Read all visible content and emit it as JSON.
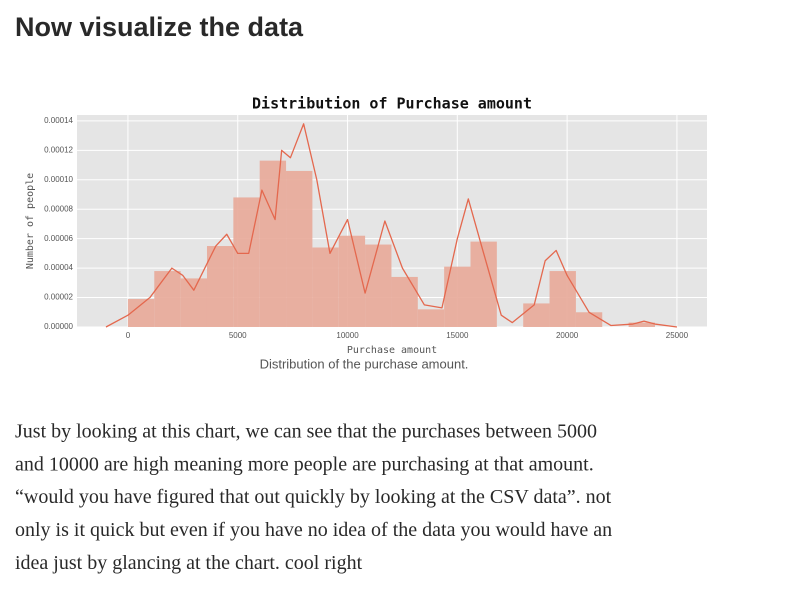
{
  "heading": "Now visualize the data",
  "chart_data": {
    "type": "histogram",
    "title": "Distribution of Purchase amount",
    "xlabel": "Purchase amount",
    "ylabel": "Number of people",
    "bins": [
      0,
      1200,
      2400,
      3600,
      4800,
      6000,
      7200,
      8400,
      9600,
      10800,
      12000,
      13200,
      14400,
      15600,
      16800,
      18000,
      19200,
      20400,
      21600,
      22800,
      24000
    ],
    "values": [
      1.9e-05,
      3.8e-05,
      3.3e-05,
      5.5e-05,
      8.8e-05,
      0.000113,
      0.000106,
      5.4e-05,
      6.2e-05,
      5.6e-05,
      3.4e-05,
      1.2e-05,
      4.1e-05,
      5.8e-05,
      0,
      1.6e-05,
      3.8e-05,
      1e-05,
      0,
      3e-06
    ],
    "color": "#e8a898",
    "kde": {
      "color": "#e4684e",
      "x": [
        -1000,
        0,
        1000,
        2000,
        2500,
        3000,
        4000,
        4500,
        5000,
        5500,
        6100,
        6700,
        7000,
        7400,
        8000,
        8600,
        9200,
        10000,
        10800,
        11700,
        12500,
        13500,
        14300,
        15000,
        15500,
        16200,
        17000,
        17500,
        18500,
        19000,
        19500,
        20000,
        21000,
        22000,
        23000,
        23500,
        24000,
        25000
      ],
      "y": [
        0,
        8e-06,
        2e-05,
        4e-05,
        3.5e-05,
        2.5e-05,
        5.5e-05,
        6.3e-05,
        5e-05,
        5e-05,
        9.3e-05,
        7.3e-05,
        0.00012,
        0.000115,
        0.000138,
        0.0001,
        5e-05,
        7.3e-05,
        2.3e-05,
        7.2e-05,
        4e-05,
        1.5e-05,
        1.3e-05,
        6e-05,
        8.7e-05,
        5e-05,
        8e-06,
        3e-06,
        1.5e-05,
        4.5e-05,
        5.2e-05,
        3.5e-05,
        1e-05,
        1e-06,
        2e-06,
        4e-06,
        2e-06,
        0
      ]
    },
    "xlim": [
      -2320,
      26370
    ],
    "ylim": [
      0,
      0.000144
    ],
    "xticks": [
      0,
      5000,
      10000,
      15000,
      20000,
      25000
    ],
    "yticks": [
      {
        "value": 0,
        "label": "0.00000"
      },
      {
        "value": 2e-05,
        "label": "0.00002"
      },
      {
        "value": 4e-05,
        "label": "0.00004"
      },
      {
        "value": 6e-05,
        "label": "0.00006"
      },
      {
        "value": 8e-05,
        "label": "0.00008"
      },
      {
        "value": 0.0001,
        "label": "0.00010"
      },
      {
        "value": 0.00012,
        "label": "0.00012"
      },
      {
        "value": 0.00014,
        "label": "0.00014"
      }
    ],
    "grid": true
  },
  "caption": "Distribution of the purchase amount.",
  "paragraph": [
    "Just by looking at this chart, we can see that the purchases between 5000",
    "and 10000 are high meaning more people are purchasing at that amount.",
    "“would you have figured that out quickly by looking at the CSV data”. not",
    "only is it quick but even if you have no idea of the data you would have an",
    "idea just by glancing at the chart. cool right"
  ]
}
